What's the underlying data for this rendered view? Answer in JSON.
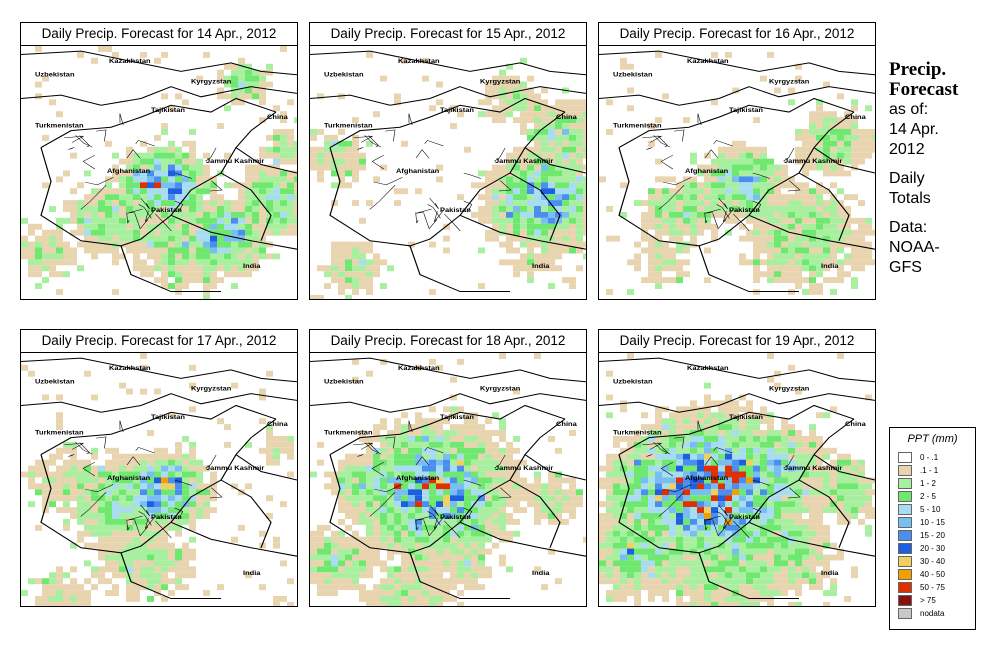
{
  "panels": [
    {
      "title": "Daily Precip. Forecast for  14 Apr., 2012"
    },
    {
      "title": "Daily Precip. Forecast for  15 Apr., 2012"
    },
    {
      "title": "Daily Precip. Forecast for  16 Apr., 2012"
    },
    {
      "title": "Daily Precip. Forecast for  17 Apr., 2012"
    },
    {
      "title": "Daily Precip. Forecast for  18 Apr., 2012"
    },
    {
      "title": "Daily Precip. Forecast for  19 Apr., 2012"
    }
  ],
  "map_labels": {
    "uzbekistan": "Uzbekistan",
    "kazakhstan": "Kazakhstan",
    "kyrgyzstan": "Kyrgyzstan",
    "tajikistan": "Tajikistan",
    "china": "China",
    "turkmenistan": "Turkmenistan",
    "afghanistan": "Afghanistan",
    "jammu_kashmir": "Jammu Kashmir",
    "pakistan": "Pakistan",
    "india": "India"
  },
  "sidebar": {
    "line1": "Precip.",
    "line2": "Forecast",
    "line3": "as of:",
    "line4": "14 Apr.",
    "line5": "2012",
    "line6": "Daily",
    "line7": "Totals",
    "line8": "Data:",
    "line9": "NOAA-",
    "line10": "GFS"
  },
  "legend": {
    "title": "PPT (mm)",
    "items": [
      {
        "label": "0 - .1",
        "color": "#ffffff"
      },
      {
        "label": ".1 - 1",
        "color": "#e8d5b0"
      },
      {
        "label": "1 - 2",
        "color": "#a8f0a0"
      },
      {
        "label": "2 - 5",
        "color": "#6ee86e"
      },
      {
        "label": "5 - 10",
        "color": "#a8dcf0"
      },
      {
        "label": "10 - 15",
        "color": "#78bef0"
      },
      {
        "label": "15 - 20",
        "color": "#4a8ef0"
      },
      {
        "label": "20 - 30",
        "color": "#1e5ee0"
      },
      {
        "label": "30 - 40",
        "color": "#f0d060"
      },
      {
        "label": "40 - 50",
        "color": "#f0a000"
      },
      {
        "label": "50 - 75",
        "color": "#e03000"
      },
      {
        "label": "> 75",
        "color": "#8a1010"
      },
      {
        "label": "nodata",
        "color": "#c8c8c8"
      }
    ]
  }
}
